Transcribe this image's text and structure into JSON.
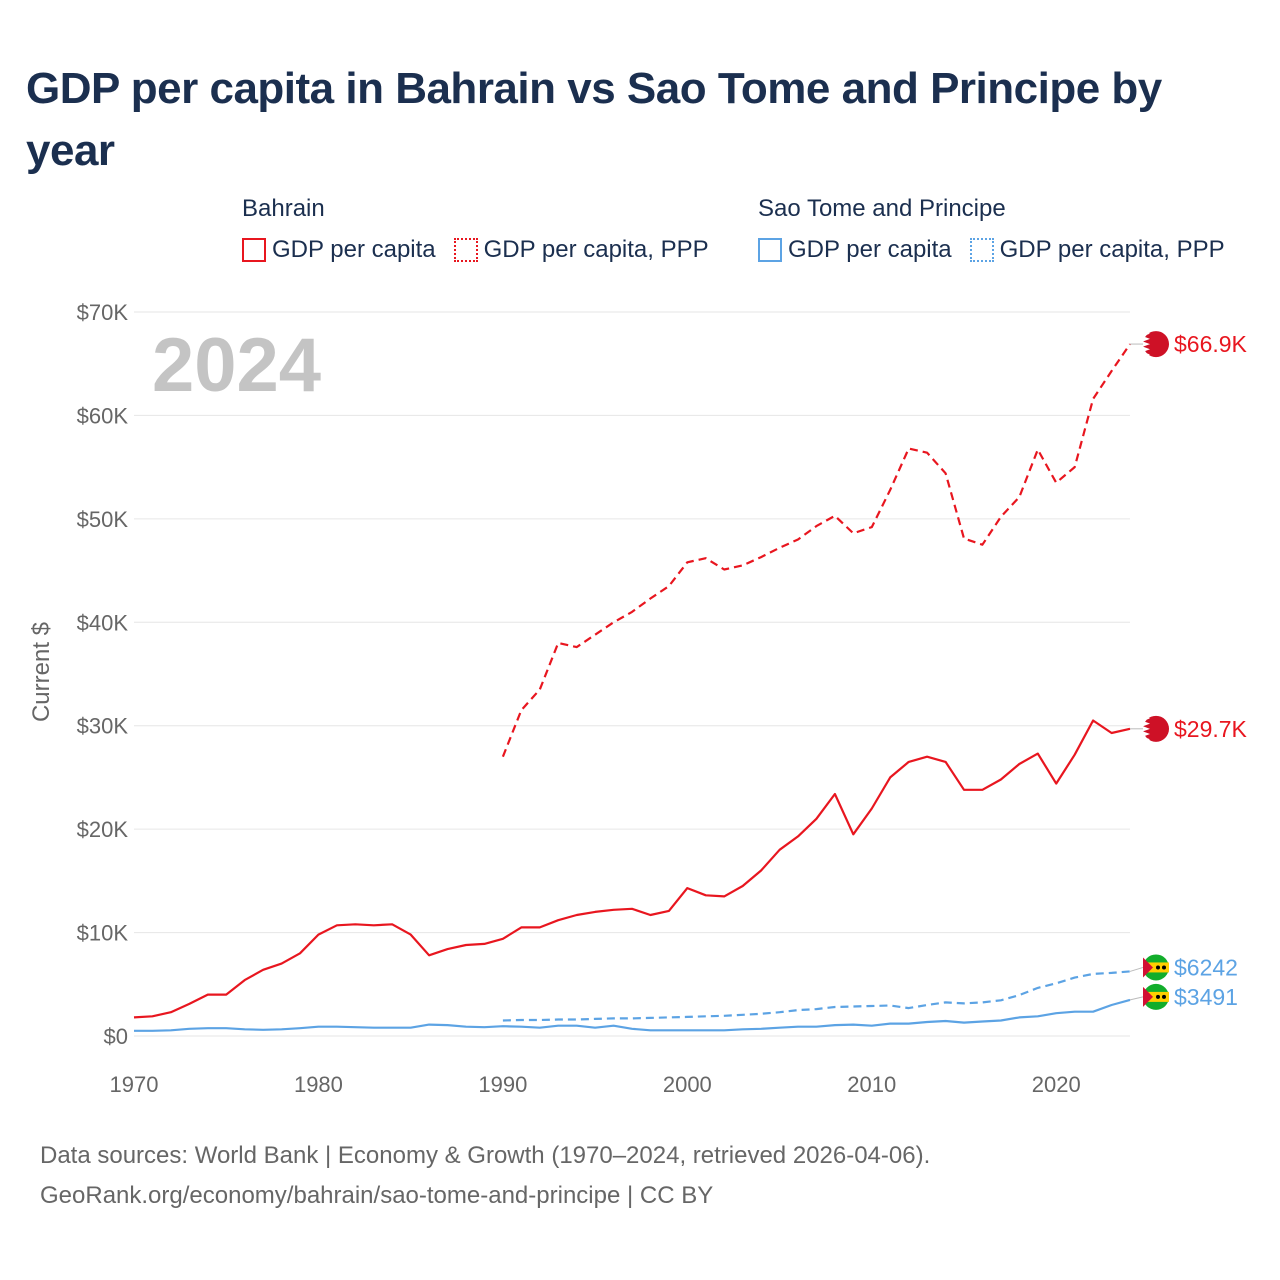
{
  "title": "GDP per capita in Bahrain vs Sao Tome and Principe by year",
  "year_label": "2024",
  "legend": {
    "bahrain": {
      "name": "Bahrain",
      "gdp": "GDP per capita",
      "ppp": "GDP per capita, PPP"
    },
    "stp": {
      "name": "Sao Tome and Principe",
      "gdp": "GDP per capita",
      "ppp": "GDP per capita, PPP"
    }
  },
  "colors": {
    "bahrain": "#e8161f",
    "stp": "#5ca3e4",
    "grid": "#e6e6e6",
    "axis_text": "#666666",
    "title": "#1b2f4f"
  },
  "footer": {
    "line1": "Data sources: World Bank | Economy & Growth (1970–2024, retrieved 2026-04-06).",
    "line2": "GeoRank.org/economy/bahrain/sao-tome-and-principe | CC BY"
  },
  "chart_data": {
    "type": "line",
    "title": "GDP per capita in Bahrain vs Sao Tome and Principe by year",
    "xlabel": "",
    "ylabel": "Current $",
    "xlim": [
      1970,
      2024
    ],
    "ylim": [
      0,
      70000
    ],
    "x_ticks": [
      1970,
      1980,
      1990,
      2000,
      2010,
      2020
    ],
    "y_ticks": [
      0,
      10000,
      20000,
      30000,
      40000,
      50000,
      60000,
      70000
    ],
    "y_tick_labels": [
      "$0",
      "$10K",
      "$20K",
      "$30K",
      "$40K",
      "$50K",
      "$60K",
      "$70K"
    ],
    "series": [
      {
        "name": "Bahrain GDP per capita",
        "style": "solid",
        "color": "#e8161f",
        "end_label": "$29.7K",
        "x": [
          1970,
          1971,
          1972,
          1973,
          1974,
          1975,
          1976,
          1977,
          1978,
          1979,
          1980,
          1981,
          1982,
          1983,
          1984,
          1985,
          1986,
          1987,
          1988,
          1989,
          1990,
          1991,
          1992,
          1993,
          1994,
          1995,
          1996,
          1997,
          1998,
          1999,
          2000,
          2001,
          2002,
          2003,
          2004,
          2005,
          2006,
          2007,
          2008,
          2009,
          2010,
          2011,
          2012,
          2013,
          2014,
          2015,
          2016,
          2017,
          2018,
          2019,
          2020,
          2021,
          2022,
          2023,
          2024
        ],
        "values": [
          1800,
          1900,
          2300,
          3100,
          4000,
          4000,
          5400,
          6400,
          7000,
          8000,
          9800,
          10700,
          10800,
          10700,
          10800,
          9800,
          7800,
          8400,
          8800,
          8900,
          9400,
          10500,
          10500,
          11200,
          11700,
          12000,
          12200,
          12300,
          11700,
          12100,
          14300,
          13600,
          13500,
          14500,
          16000,
          18000,
          19300,
          21000,
          23400,
          19500,
          22000,
          25000,
          26500,
          27000,
          26500,
          23800,
          23800,
          24800,
          26300,
          27300,
          24400,
          27200,
          30500,
          29300,
          29700
        ]
      },
      {
        "name": "Bahrain GDP per capita, PPP",
        "style": "dashed",
        "color": "#e8161f",
        "end_label": "$66.9K",
        "x": [
          1990,
          1991,
          1992,
          1993,
          1994,
          1995,
          1996,
          1997,
          1998,
          1999,
          2000,
          2001,
          2002,
          2003,
          2004,
          2005,
          2006,
          2007,
          2008,
          2009,
          2010,
          2011,
          2012,
          2013,
          2014,
          2015,
          2016,
          2017,
          2018,
          2019,
          2020,
          2021,
          2022,
          2023,
          2024
        ],
        "values": [
          27000,
          31500,
          33500,
          38000,
          37600,
          38800,
          40000,
          41000,
          42300,
          43500,
          45800,
          46200,
          45100,
          45500,
          46300,
          47200,
          48000,
          49300,
          50300,
          48600,
          49200,
          52800,
          56800,
          56400,
          54400,
          48100,
          47500,
          50200,
          52100,
          56700,
          53500,
          55000,
          61600,
          64300,
          66900
        ]
      },
      {
        "name": "Sao Tome and Principe GDP per capita",
        "style": "solid",
        "color": "#5ca3e4",
        "end_label": "$3491",
        "x": [
          1970,
          1971,
          1972,
          1973,
          1974,
          1975,
          1976,
          1977,
          1978,
          1979,
          1980,
          1981,
          1982,
          1983,
          1984,
          1985,
          1986,
          1987,
          1988,
          1989,
          1990,
          1991,
          1992,
          1993,
          1994,
          1995,
          1996,
          1997,
          1998,
          1999,
          2000,
          2001,
          2002,
          2003,
          2004,
          2005,
          2006,
          2007,
          2008,
          2009,
          2010,
          2011,
          2012,
          2013,
          2014,
          2015,
          2016,
          2017,
          2018,
          2019,
          2020,
          2021,
          2022,
          2023,
          2024
        ],
        "values": [
          500,
          500,
          550,
          700,
          750,
          750,
          650,
          600,
          650,
          750,
          900,
          900,
          850,
          800,
          800,
          800,
          1100,
          1050,
          900,
          850,
          950,
          900,
          800,
          1000,
          1000,
          800,
          1000,
          700,
          550,
          550,
          550,
          550,
          550,
          650,
          700,
          800,
          900,
          900,
          1050,
          1100,
          1000,
          1200,
          1200,
          1350,
          1450,
          1300,
          1400,
          1500,
          1800,
          1900,
          2200,
          2350,
          2350,
          3000,
          3491
        ]
      },
      {
        "name": "Sao Tome and Principe GDP per capita, PPP",
        "style": "dashed",
        "color": "#5ca3e4",
        "end_label": "$6242",
        "x": [
          1990,
          1991,
          1992,
          1993,
          1994,
          1995,
          1996,
          1997,
          1998,
          1999,
          2000,
          2001,
          2002,
          2003,
          2004,
          2005,
          2006,
          2007,
          2008,
          2009,
          2010,
          2011,
          2012,
          2013,
          2014,
          2015,
          2016,
          2017,
          2018,
          2019,
          2020,
          2021,
          2022,
          2023,
          2024
        ],
        "values": [
          1500,
          1550,
          1550,
          1600,
          1600,
          1650,
          1700,
          1700,
          1750,
          1800,
          1850,
          1900,
          1950,
          2050,
          2150,
          2300,
          2500,
          2600,
          2800,
          2850,
          2900,
          2950,
          2700,
          3000,
          3250,
          3150,
          3250,
          3450,
          3950,
          4650,
          5100,
          5650,
          6000,
          6100,
          6242
        ]
      }
    ]
  }
}
